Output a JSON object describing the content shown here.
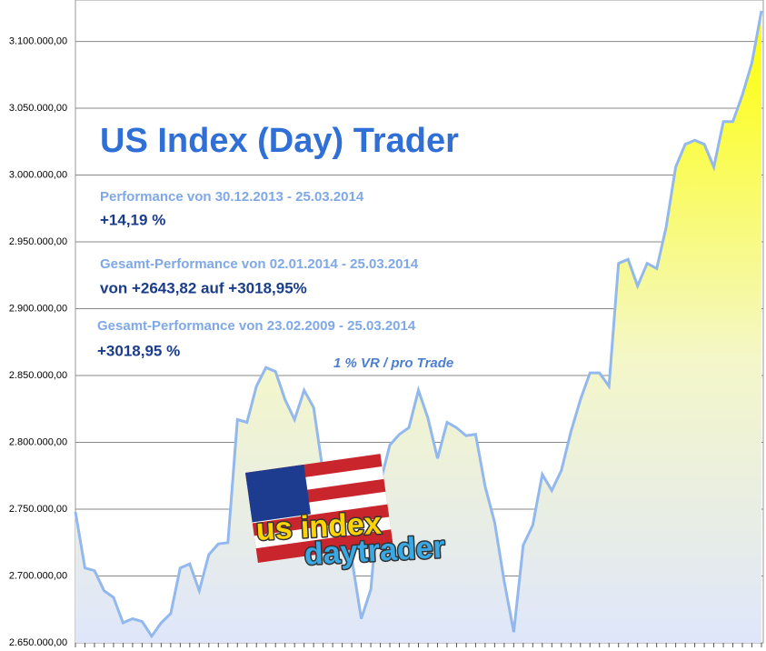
{
  "chart_data": {
    "type": "area",
    "title": "US Index (Day) Trader",
    "annotations": [
      "Performance  von  30.12.2013 - 25.03.2014",
      "+14,19  %",
      "Gesamt-Performance  von  02.01.2014 - 25.03.2014",
      "von +2643,82 auf  +3018,95%",
      "Gesamt-Performance  von  23.02.2009 - 25.03.2014",
      "+3018,95 %",
      "1 % VR / pro Trade"
    ],
    "logo": [
      "us index",
      "daytrader"
    ],
    "values": [
      2748000,
      2706000,
      2704000,
      2689000,
      2684000,
      2665000,
      2668000,
      2666000,
      2655000,
      2665000,
      2672000,
      2706000,
      2709000,
      2689000,
      2716000,
      2724000,
      2725000,
      2817000,
      2815000,
      2842000,
      2856000,
      2853000,
      2832000,
      2817000,
      2839000,
      2826000,
      2777000,
      2747000,
      2730000,
      2713000,
      2668000,
      2690000,
      2770000,
      2798000,
      2806000,
      2811000,
      2839000,
      2818000,
      2788000,
      2815000,
      2811000,
      2805000,
      2806000,
      2767000,
      2740000,
      2696000,
      2658000,
      2723000,
      2738000,
      2776000,
      2764000,
      2779000,
      2808000,
      2832000,
      2852000,
      2852000,
      2842000,
      2934000,
      2937000,
      2917000,
      2934000,
      2930000,
      2961000,
      3006000,
      3023000,
      3026000,
      3023000,
      3006000,
      3040000,
      3040000,
      3060000,
      3084000,
      3123000
    ],
    "color": "#93b8ee",
    "ylim": [
      2650000,
      3131000
    ],
    "yticks": [
      {
        "value": 2650000,
        "label": "2.650.000,00"
      },
      {
        "value": 2700000,
        "label": "2.700.000,00"
      },
      {
        "value": 2750000,
        "label": "2.750.000,00"
      },
      {
        "value": 2800000,
        "label": "2.800.000,00"
      },
      {
        "value": 2850000,
        "label": "2.850.000,00"
      },
      {
        "value": 2900000,
        "label": "2.900.000,00"
      },
      {
        "value": 2950000,
        "label": "2.950.000,00"
      },
      {
        "value": 3000000,
        "label": "3.000.000,00"
      },
      {
        "value": 3050000,
        "label": "3.050.000,00"
      },
      {
        "value": 3100000,
        "label": "3.100.000,00"
      }
    ],
    "grid": true
  }
}
